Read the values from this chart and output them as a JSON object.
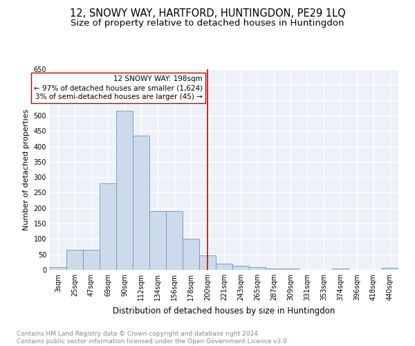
{
  "title": "12, SNOWY WAY, HARTFORD, HUNTINGDON, PE29 1LQ",
  "subtitle": "Size of property relative to detached houses in Huntingdon",
  "xlabel": "Distribution of detached houses by size in Huntingdon",
  "ylabel": "Number of detached properties",
  "bin_labels": [
    "3sqm",
    "25sqm",
    "47sqm",
    "69sqm",
    "90sqm",
    "112sqm",
    "134sqm",
    "156sqm",
    "178sqm",
    "200sqm",
    "221sqm",
    "243sqm",
    "265sqm",
    "287sqm",
    "309sqm",
    "331sqm",
    "353sqm",
    "374sqm",
    "396sqm",
    "418sqm",
    "440sqm"
  ],
  "bar_heights": [
    10,
    65,
    65,
    280,
    515,
    435,
    190,
    190,
    100,
    48,
    20,
    13,
    8,
    5,
    5,
    0,
    0,
    5,
    0,
    0,
    7
  ],
  "bar_color": "#ccdaeb",
  "bar_edge_color": "#6699bb",
  "annotation_line_x_label": "200sqm",
  "annotation_line_color": "#cc0000",
  "annotation_box_text": "12 SNOWY WAY: 198sqm\n← 97% of detached houses are smaller (1,624)\n3% of semi-detached houses are larger (45) →",
  "annotation_box_color": "#ffffff",
  "annotation_box_edge_color": "#cc0000",
  "ylim": [
    0,
    650
  ],
  "bg_color": "#eef2f8",
  "grid_color": "#ffffff",
  "footer_text": "Contains HM Land Registry data © Crown copyright and database right 2024.\nContains public sector information licensed under the Open Government Licence v3.0.",
  "title_fontsize": 10.5,
  "subtitle_fontsize": 9.5,
  "xlabel_fontsize": 8.5,
  "ylabel_fontsize": 8,
  "tick_fontsize": 7,
  "annotation_fontsize": 7.5,
  "footer_fontsize": 6.5
}
